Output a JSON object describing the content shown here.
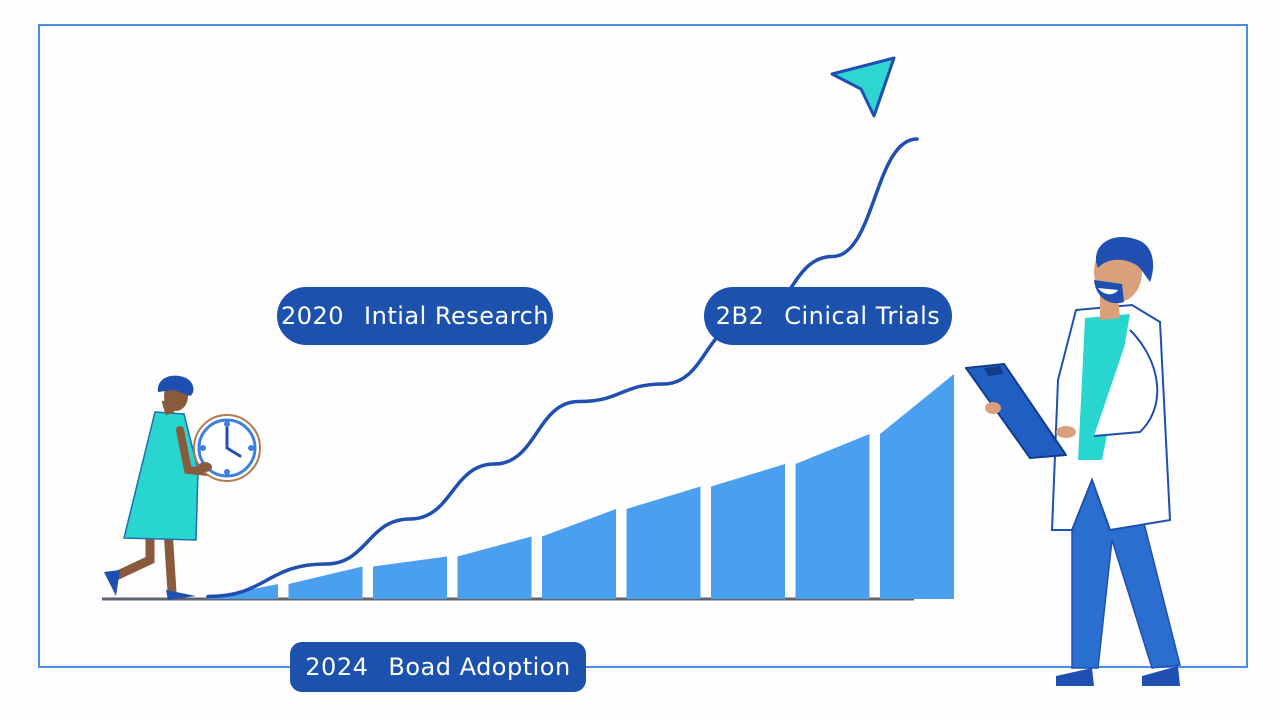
{
  "colors": {
    "bar": "#4aa0ee",
    "curve": "#1f4fb0",
    "arrowhead": "#2fd5d0",
    "pill_bg": "#1c52ad",
    "frame": "#4a8fe0",
    "teal": "#28d6cf",
    "navy": "#1f4fb0",
    "skin": "#8a5a3c",
    "skin_light": "#d9a07b"
  },
  "milestones": [
    {
      "year": "2020",
      "label": "Intial Research"
    },
    {
      "year": "2B2",
      "label": "Cinical Trials"
    },
    {
      "year": "2024",
      "label": "Boad Adoption"
    }
  ],
  "chart_data": {
    "type": "bar",
    "categories": [
      "",
      "",
      "",
      "",
      "",
      "",
      "",
      "",
      ""
    ],
    "values": [
      0.6,
      1.3,
      1.7,
      2.5,
      3.6,
      4.5,
      5.4,
      6.6,
      9.0
    ],
    "trend": [
      0.1,
      1.4,
      3.2,
      5.4,
      7.9,
      8.6,
      11.1,
      13.7,
      18.4
    ],
    "ylim": [
      0,
      20
    ],
    "grid": false,
    "legend": "none"
  },
  "icons": {
    "arrow": "trend-arrowhead-icon",
    "clock": "clock-icon",
    "clipboard": "clipboard-icon"
  }
}
